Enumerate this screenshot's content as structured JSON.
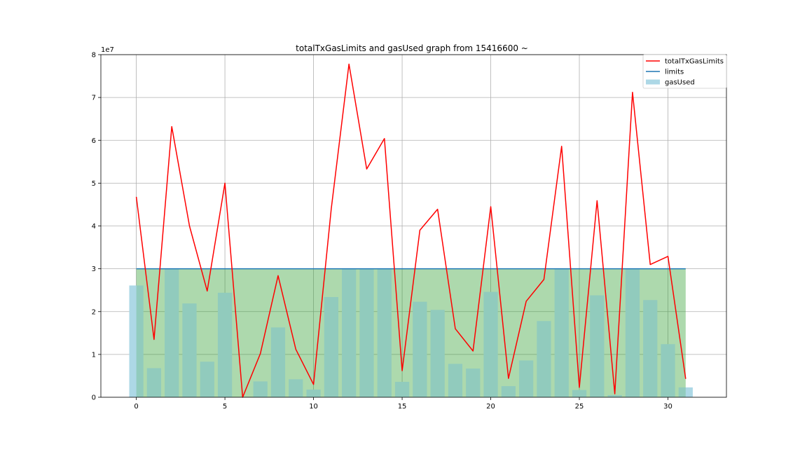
{
  "chart_data": {
    "type": "bar",
    "title": "totalTxGasLimits and gasUsed graph from 15416600 ~",
    "xlabel": "",
    "ylabel": "",
    "y_offset_label": "1e7",
    "xlim": [
      -2,
      33.3
    ],
    "ylim": [
      0,
      8
    ],
    "xticks": [
      0,
      5,
      10,
      15,
      20,
      25,
      30
    ],
    "yticks": [
      0,
      1,
      2,
      3,
      4,
      5,
      6,
      7,
      8
    ],
    "grid": true,
    "legend_position": "top-right",
    "x": [
      0,
      1,
      2,
      3,
      4,
      5,
      6,
      7,
      8,
      9,
      10,
      11,
      12,
      13,
      14,
      15,
      16,
      17,
      18,
      19,
      20,
      21,
      22,
      23,
      24,
      25,
      26,
      27,
      28,
      29,
      30,
      31
    ],
    "series": [
      {
        "name": "totalTxGasLimits",
        "kind": "line",
        "color": "#ff0000",
        "values": [
          4.68,
          1.35,
          6.32,
          4.0,
          2.48,
          5.0,
          0.0,
          1.02,
          2.84,
          1.12,
          0.3,
          4.4,
          7.78,
          5.33,
          6.04,
          0.62,
          3.9,
          4.39,
          1.6,
          1.08,
          4.45,
          0.44,
          2.24,
          2.75,
          5.86,
          0.23,
          4.59,
          0.08,
          7.12,
          3.1,
          3.29,
          0.43
        ]
      },
      {
        "name": "limits",
        "kind": "line",
        "color": "#1f77b4",
        "values": [
          3.0,
          3.0,
          3.0,
          3.0,
          3.0,
          3.0,
          3.0,
          3.0,
          3.0,
          3.0,
          3.0,
          3.0,
          3.0,
          3.0,
          3.0,
          3.0,
          3.0,
          3.0,
          3.0,
          3.0,
          3.0,
          3.0,
          3.0,
          3.0,
          3.0,
          3.0,
          3.0,
          3.0,
          3.0,
          3.0,
          3.0,
          3.0
        ]
      },
      {
        "name": "gasUsed",
        "kind": "bar",
        "color": "#add8e6",
        "values": [
          2.61,
          0.68,
          3.0,
          2.19,
          0.83,
          2.44,
          0.0,
          0.37,
          1.63,
          0.42,
          0.18,
          2.34,
          3.0,
          3.0,
          3.0,
          0.36,
          2.23,
          2.04,
          0.78,
          0.67,
          2.46,
          0.26,
          0.86,
          1.78,
          3.0,
          0.17,
          2.38,
          0.05,
          3.0,
          2.27,
          1.24,
          0.23
        ]
      }
    ],
    "fill_under_limits": {
      "color": "#2ca02c",
      "alpha": 0.22
    }
  }
}
